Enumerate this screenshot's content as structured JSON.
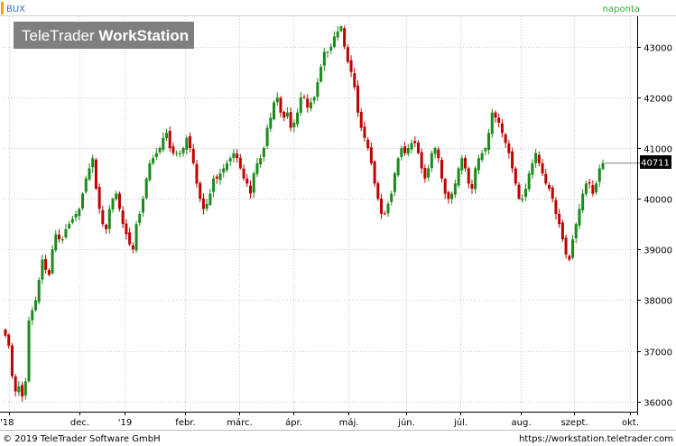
{
  "header": {
    "symbol": "BUX",
    "interval": "naponta",
    "watermark_light": "TeleTrader ",
    "watermark_bold": "WorkStation"
  },
  "footer": {
    "copyright": "© 2019 TeleTrader Software GmbH",
    "url": "https://workstation.teletrader.com"
  },
  "colors": {
    "up": "#1a8a1a",
    "down": "#c00000",
    "grid": "#c8c8c8",
    "symbol_text": "#2a6fd6",
    "interval_text": "#33aa33",
    "accent_bar": "#f5a300",
    "watermark_bg": "#7f7f7f"
  },
  "chart_data": {
    "type": "candlestick",
    "title": "BUX",
    "interval": "naponta",
    "ylim": [
      35800,
      43600
    ],
    "y_ticks": [
      36000,
      37000,
      38000,
      39000,
      40000,
      41000,
      42000,
      43000
    ],
    "x_ticks": [
      "'18",
      "dec.",
      "'19",
      "febr.",
      "márc.",
      "ápr.",
      "máj.",
      "jún.",
      "júl.",
      "aug.",
      "szept.",
      "okt."
    ],
    "last_value": "40711",
    "grid": true,
    "series": [
      {
        "values": [
          37300,
          37100,
          36500,
          36200,
          36300,
          36100,
          36400,
          37600,
          37800,
          38000,
          38400,
          38800,
          38600,
          38500,
          39000,
          39300,
          39200,
          39200,
          39400,
          39500,
          39600,
          39700,
          39800,
          40100,
          40400,
          40600,
          40800,
          40200,
          39800,
          39500,
          39400,
          39800,
          40000,
          40100,
          39800,
          39500,
          39300,
          39100,
          39000,
          39500,
          39700,
          40000,
          40400,
          40700,
          40800,
          40900,
          41000,
          41200,
          41300,
          41000,
          40900,
          40900,
          40900,
          41000,
          41200,
          41000,
          40700,
          40300,
          40000,
          39800,
          39900,
          40100,
          40400,
          40400,
          40500,
          40600,
          40700,
          40800,
          40900,
          40800,
          40600,
          40400,
          40300,
          40100,
          40500,
          40700,
          40800,
          41000,
          41400,
          41600,
          41900,
          42000,
          41700,
          41600,
          41700,
          41400,
          41500,
          41700,
          42000,
          42000,
          41800,
          41900,
          42000,
          42300,
          42600,
          42900,
          42900,
          43000,
          43200,
          43300,
          43400,
          43000,
          42700,
          42500,
          42200,
          41700,
          41400,
          41200,
          41000,
          40700,
          40300,
          40000,
          39700,
          39700,
          39900,
          40100,
          40500,
          40800,
          41000,
          40900,
          41000,
          41100,
          41100,
          40900,
          40600,
          40400,
          40600,
          40900,
          41000,
          40800,
          40400,
          40100,
          40000,
          40100,
          40300,
          40600,
          40800,
          40600,
          40300,
          40200,
          40600,
          40800,
          40900,
          41000,
          41300,
          41700,
          41600,
          41500,
          41300,
          41100,
          40900,
          40600,
          40300,
          40000,
          40000,
          40200,
          40500,
          40700,
          40900,
          40700,
          40500,
          40300,
          40200,
          40000,
          39700,
          39500,
          39200,
          38900,
          38800,
          39200,
          39500,
          39800,
          40100,
          40300,
          40300,
          40100,
          40300,
          40600,
          40700
        ]
      }
    ]
  }
}
